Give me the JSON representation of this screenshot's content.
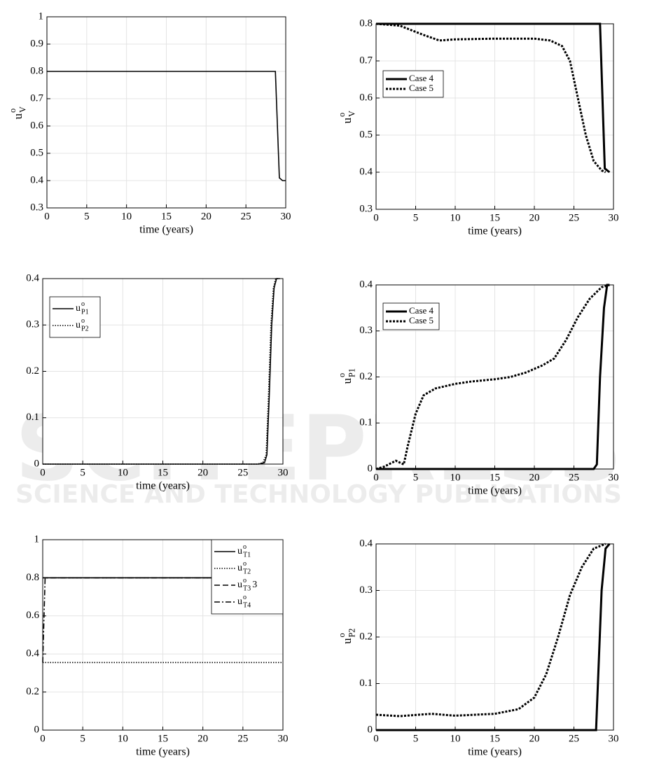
{
  "watermark": {
    "title": "SCITEPRESS",
    "subtitle": "SCIENCE AND TECHNOLOGY PUBLICATIONS"
  },
  "chart_data": [
    {
      "type": "line",
      "xlabel": "time (years)",
      "ylabel": {
        "text": "u",
        "sup": "o",
        "sub": "V"
      },
      "xlim": [
        0,
        30
      ],
      "ylim": [
        0.3,
        1
      ],
      "xticks": [
        0,
        5,
        10,
        15,
        20,
        25,
        30
      ],
      "yticks": [
        0.3,
        0.4,
        0.5,
        0.6,
        0.7,
        0.8,
        0.9,
        1
      ],
      "grid": true,
      "series": [
        {
          "color": "#000000",
          "style": "solid",
          "linewidth": 1.6,
          "x": [
            0,
            28.7,
            29.2,
            29.6,
            30
          ],
          "values": [
            0.8,
            0.8,
            0.41,
            0.4,
            0.4
          ]
        }
      ]
    },
    {
      "type": "line",
      "xlabel": "time (years)",
      "ylabel": {
        "text": "u",
        "sup": "o",
        "sub": "V"
      },
      "xlim": [
        0,
        30
      ],
      "ylim": [
        0.3,
        0.8
      ],
      "xticks": [
        0,
        5,
        10,
        15,
        20,
        25,
        30
      ],
      "yticks": [
        0.3,
        0.4,
        0.5,
        0.6,
        0.7,
        0.8
      ],
      "grid": true,
      "legend": "upper left",
      "series": [
        {
          "name": "Case 4",
          "color": "#000000",
          "style": "solid",
          "linewidth": 3,
          "x": [
            0,
            28.3,
            28.9,
            29.5
          ],
          "values": [
            0.8,
            0.8,
            0.41,
            0.4
          ]
        },
        {
          "name": "Case 5",
          "color": "#000000",
          "style": "dotted",
          "linewidth": 3,
          "x": [
            0,
            3,
            6,
            8,
            10,
            15,
            20,
            22,
            23.5,
            24.5,
            25.5,
            26.5,
            27.5,
            28.5,
            29
          ],
          "values": [
            0.8,
            0.795,
            0.77,
            0.755,
            0.758,
            0.76,
            0.76,
            0.755,
            0.74,
            0.7,
            0.6,
            0.5,
            0.43,
            0.405,
            0.4
          ]
        }
      ]
    },
    {
      "type": "line",
      "xlabel": "time (years)",
      "xlim": [
        0,
        30
      ],
      "ylim": [
        0,
        0.4
      ],
      "xticks": [
        0,
        5,
        10,
        15,
        20,
        25,
        30
      ],
      "yticks": [
        0,
        0.1,
        0.2,
        0.3,
        0.4
      ],
      "grid": true,
      "legend": "upper left",
      "series": [
        {
          "name": {
            "text": "u",
            "sup": "o",
            "sub": "P1"
          },
          "color": "#000000",
          "style": "solid",
          "linewidth": 1.6,
          "x": [
            0,
            27,
            27.7,
            28,
            28.3,
            28.6,
            28.9,
            29.2,
            29.6
          ],
          "values": [
            0,
            0,
            0.003,
            0.02,
            0.15,
            0.3,
            0.38,
            0.4,
            0.4
          ]
        },
        {
          "name": {
            "text": "u",
            "sup": "o",
            "sub": "P2"
          },
          "color": "#000000",
          "style": "dotted",
          "linewidth": 1.6,
          "x": [
            0,
            26.8,
            27.5,
            27.9,
            28.2,
            28.5,
            28.8,
            29.1,
            29.6
          ],
          "values": [
            0,
            0,
            0.003,
            0.02,
            0.15,
            0.3,
            0.38,
            0.4,
            0.4
          ]
        }
      ]
    },
    {
      "type": "line",
      "xlabel": "time (years)",
      "ylabel": {
        "text": "u",
        "sup": "o",
        "sub": "P1"
      },
      "xlim": [
        0,
        30
      ],
      "ylim": [
        0,
        0.4
      ],
      "xticks": [
        0,
        5,
        10,
        15,
        20,
        25,
        30
      ],
      "yticks": [
        0,
        0.1,
        0.2,
        0.3,
        0.4
      ],
      "grid": true,
      "legend": "upper left",
      "series": [
        {
          "name": "Case 4",
          "color": "#000000",
          "style": "solid",
          "linewidth": 3,
          "x": [
            0,
            27.5,
            27.9,
            28.3,
            28.8,
            29.2,
            29.5
          ],
          "values": [
            0,
            0,
            0.01,
            0.2,
            0.35,
            0.4,
            0.4
          ]
        },
        {
          "name": "Case 5",
          "color": "#000000",
          "style": "dotted",
          "linewidth": 3,
          "x": [
            0,
            1,
            2.5,
            3.5,
            4,
            5,
            6,
            7.5,
            10,
            12,
            15,
            17,
            19,
            21,
            22.5,
            24,
            25.5,
            27,
            28.5,
            29.5
          ],
          "values": [
            0,
            0.005,
            0.018,
            0.01,
            0.05,
            0.12,
            0.16,
            0.175,
            0.185,
            0.19,
            0.195,
            0.2,
            0.21,
            0.225,
            0.24,
            0.28,
            0.33,
            0.37,
            0.395,
            0.4
          ]
        }
      ]
    },
    {
      "type": "line",
      "xlabel": "time (years)",
      "xlim": [
        0,
        30
      ],
      "ylim": [
        0,
        1
      ],
      "xticks": [
        0,
        5,
        10,
        15,
        20,
        25,
        30
      ],
      "yticks": [
        0,
        0.2,
        0.4,
        0.6,
        0.8,
        1
      ],
      "grid": true,
      "legend": "upper right",
      "series": [
        {
          "name": {
            "text": "u",
            "sup": "o",
            "sub": "T1"
          },
          "color": "#000000",
          "style": "solid",
          "linewidth": 1.6,
          "x": [
            0,
            30
          ],
          "values": [
            0.8,
            0.8
          ]
        },
        {
          "name": {
            "text": "u",
            "sup": "o",
            "sub": "T2"
          },
          "color": "#000000",
          "style": "dotted",
          "linewidth": 1.6,
          "x": [
            0,
            30
          ],
          "values": [
            0.355,
            0.355
          ]
        },
        {
          "name": {
            "text": "u",
            "sup": "o",
            "sub": "T3",
            "suffix": "3"
          },
          "color": "#000000",
          "style": "dashed",
          "linewidth": 1.6,
          "x": [
            0,
            30
          ],
          "values": [
            0.8,
            0.8
          ]
        },
        {
          "name": {
            "text": "u",
            "sup": "o",
            "sub": "T4"
          },
          "color": "#000000",
          "style": "dashdot",
          "linewidth": 1.6,
          "x": [
            0,
            0.3,
            30
          ],
          "values": [
            0.355,
            0.8,
            0.8
          ]
        }
      ]
    },
    {
      "type": "line",
      "xlabel": "time (years)",
      "ylabel": {
        "text": "u",
        "sup": "o",
        "sub": "P2"
      },
      "xlim": [
        0,
        30
      ],
      "ylim": [
        0,
        0.4
      ],
      "xticks": [
        0,
        5,
        10,
        15,
        20,
        25,
        30
      ],
      "yticks": [
        0,
        0.1,
        0.2,
        0.3,
        0.4
      ],
      "grid": true,
      "series": [
        {
          "color": "#000000",
          "style": "solid",
          "linewidth": 3,
          "x": [
            0,
            27.8,
            28.5,
            29,
            29.5
          ],
          "values": [
            0,
            0,
            0.3,
            0.39,
            0.4
          ]
        },
        {
          "color": "#000000",
          "style": "dotted",
          "linewidth": 3,
          "x": [
            0,
            3,
            7,
            10,
            15,
            18,
            20,
            21.5,
            23,
            24.5,
            26,
            27.5,
            29
          ],
          "values": [
            0.033,
            0.03,
            0.035,
            0.031,
            0.035,
            0.045,
            0.07,
            0.12,
            0.2,
            0.29,
            0.35,
            0.39,
            0.4
          ]
        }
      ]
    }
  ]
}
